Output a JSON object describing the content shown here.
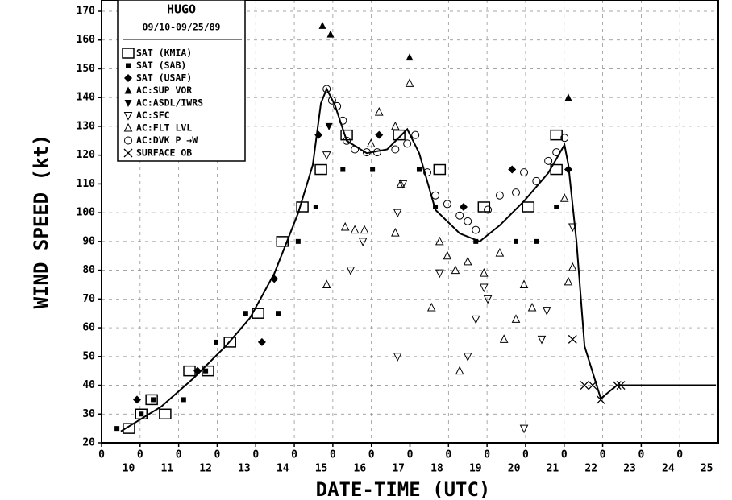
{
  "chart_data": {
    "type": "scatter",
    "legend_title": "HUGO",
    "legend_subtitle": "09/10-09/25/89",
    "xlabel": "DATE-TIME (UTC)",
    "ylabel": "WIND SPEED (kt)",
    "xlim": [
      10,
      26
    ],
    "ylim": [
      20,
      170
    ],
    "yticks": [
      20,
      30,
      40,
      50,
      60,
      70,
      80,
      90,
      100,
      110,
      120,
      130,
      140,
      150,
      160,
      170
    ],
    "xticks": [
      {
        "value": 10,
        "label": "0"
      },
      {
        "value": 11,
        "label": "0"
      },
      {
        "value": 12,
        "label": "0"
      },
      {
        "value": 13,
        "label": "0"
      },
      {
        "value": 14,
        "label": "0"
      },
      {
        "value": 15,
        "label": "0"
      },
      {
        "value": 16,
        "label": "0"
      },
      {
        "value": 17,
        "label": "0"
      },
      {
        "value": 18,
        "label": "0"
      },
      {
        "value": 19,
        "label": "0"
      },
      {
        "value": 20,
        "label": "0"
      },
      {
        "value": 21,
        "label": "0"
      },
      {
        "value": 22,
        "label": "0"
      },
      {
        "value": 23,
        "label": "0"
      },
      {
        "value": 24,
        "label": "0"
      },
      {
        "value": 25,
        "label": "0"
      }
    ],
    "date_ticks": [
      {
        "value": 10.7,
        "label": "10"
      },
      {
        "value": 11.7,
        "label": "11"
      },
      {
        "value": 12.7,
        "label": "12"
      },
      {
        "value": 13.7,
        "label": "13"
      },
      {
        "value": 14.7,
        "label": "14"
      },
      {
        "value": 15.7,
        "label": "15"
      },
      {
        "value": 16.7,
        "label": "16"
      },
      {
        "value": 17.7,
        "label": "17"
      },
      {
        "value": 18.7,
        "label": "18"
      },
      {
        "value": 19.7,
        "label": "19"
      },
      {
        "value": 20.7,
        "label": "20"
      },
      {
        "value": 21.7,
        "label": "21"
      },
      {
        "value": 22.7,
        "label": "22"
      },
      {
        "value": 23.7,
        "label": "23"
      },
      {
        "value": 24.7,
        "label": "24"
      },
      {
        "value": 25.7,
        "label": "25"
      }
    ],
    "grid": true,
    "legend": "upper left",
    "best_track": {
      "color": "#000",
      "x": [
        10.5,
        11.55,
        12.38,
        13.22,
        13.85,
        14.48,
        15.1,
        15.48,
        15.69,
        15.84,
        16.05,
        16.36,
        16.88,
        17.41,
        17.93,
        18.24,
        18.66,
        19.29,
        19.81,
        20.33,
        20.96,
        21.59,
        22.01,
        22.11,
        22.32,
        22.53,
        22.95,
        23.37,
        23.89,
        25.94
      ],
      "values": [
        24,
        32.6,
        42.4,
        53.6,
        63.4,
        78.8,
        99.8,
        116.6,
        138,
        143,
        137.5,
        125,
        120.7,
        122,
        129,
        120.7,
        101,
        92.8,
        90,
        95.6,
        104,
        113.8,
        123.6,
        116.6,
        90,
        53.6,
        35.4,
        40,
        40,
        40
      ]
    },
    "series": [
      {
        "name": "SAT (KMIA)",
        "marker": "square-open",
        "color": "#000",
        "x": [
          10.71,
          11.03,
          11.3,
          11.65,
          12.28,
          12.76,
          13.33,
          14.06,
          14.69,
          15.21,
          15.69,
          16.36,
          17.72,
          18.77,
          19.92,
          21.07,
          21.8,
          21.8
        ],
        "values": [
          25,
          30,
          35,
          30,
          45,
          45,
          55,
          65,
          90,
          102,
          115,
          127,
          127,
          115,
          102,
          102,
          115,
          127
        ]
      },
      {
        "name": "SAT (SAB)",
        "marker": "square-filled",
        "color": "#000",
        "x": [
          10.4,
          11.03,
          11.34,
          12.13,
          12.7,
          12.97,
          13.74,
          14.58,
          15.1,
          15.56,
          16.26,
          17.03,
          18.24,
          18.66,
          19.71,
          20.75,
          21.28,
          21.8
        ],
        "values": [
          25,
          30,
          35,
          35,
          45,
          55,
          65,
          65,
          90,
          102,
          115,
          115,
          115,
          102,
          90,
          90,
          90,
          102
        ]
      },
      {
        "name": "SAT (USAF)",
        "marker": "diamond",
        "color": "#000",
        "x": [
          10.92,
          12.49,
          14.16,
          14.48,
          15.63,
          17.2,
          19.39,
          20.65,
          22.11
        ],
        "values": [
          35,
          45,
          55,
          77,
          127,
          127,
          102,
          115,
          115
        ]
      },
      {
        "name": "AC:SUP VOR",
        "marker": "triangle-up-filled",
        "color": "#000",
        "x": [
          15.73,
          15.94,
          17.99,
          22.11
        ],
        "values": [
          165,
          162,
          154,
          140
        ]
      },
      {
        "name": "AC:ASDL/IWRS",
        "marker": "triangle-down-filled",
        "color": "#000",
        "x": [
          15.9
        ],
        "values": [
          130
        ]
      },
      {
        "name": "AC:SFC",
        "marker": "triangle-down-open",
        "color": "#000",
        "x": [
          15.84,
          16.78,
          16.46,
          17.68,
          17.68,
          17.82,
          18.77,
          19.5,
          19.71,
          19.92,
          20.02,
          20.96,
          21.42,
          21.55,
          22.22
        ],
        "values": [
          120,
          90,
          80,
          50,
          100,
          110,
          79,
          50,
          63,
          74,
          70,
          25,
          56,
          66,
          95
        ]
      },
      {
        "name": "AC:FLT LVL",
        "marker": "triangle-up-open",
        "color": "#000",
        "x": [
          15.84,
          16.32,
          16.57,
          16.82,
          16.99,
          17.2,
          17.62,
          17.62,
          17.76,
          17.99,
          18.56,
          18.77,
          18.97,
          19.18,
          19.29,
          19.5,
          19.92,
          20.33,
          20.44,
          20.75,
          20.96,
          21.17,
          22.01,
          22.11,
          22.22
        ],
        "values": [
          75,
          95,
          94,
          94,
          124,
          135,
          130,
          93,
          110,
          145,
          67,
          90,
          85,
          80,
          45,
          83,
          79,
          86,
          56,
          63,
          75,
          67,
          105,
          76,
          81
        ]
      },
      {
        "name": "AC:DVK P →W",
        "marker": "circle",
        "color": "#000",
        "x": [
          15.84,
          15.98,
          16.11,
          16.26,
          16.36,
          16.57,
          16.88,
          17.15,
          17.62,
          17.93,
          18.14,
          18.45,
          18.66,
          18.97,
          19.29,
          19.5,
          19.71,
          20.02,
          20.33,
          20.75,
          20.96,
          21.28,
          21.59,
          21.8,
          22.01
        ],
        "values": [
          143,
          139,
          137,
          132,
          125,
          122,
          121,
          121,
          122,
          124,
          127,
          114,
          106,
          103,
          99,
          97,
          94,
          101,
          106,
          107,
          114,
          111,
          118,
          121,
          126
        ]
      },
      {
        "name": "SURFACE OB",
        "marker": "cross",
        "color": "#000",
        "x": [
          22.22,
          22.53,
          22.74,
          22.95,
          23.37,
          23.47
        ],
        "values": [
          56,
          40,
          40,
          35,
          40,
          40
        ]
      }
    ]
  }
}
